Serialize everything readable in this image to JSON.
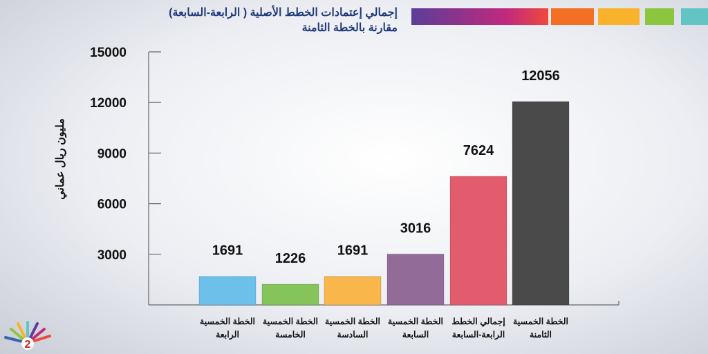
{
  "title_lines": [
    "إجمالي إعتمادات الخطط الأصلية ( الرابعة-السابعة)",
    "مقارنة بالخطة الثامنة"
  ],
  "page_number": "2",
  "colors": {
    "title": "#1f3a7a",
    "strip": [
      "#5a3e98",
      "#c2297d",
      "#ef4a3a",
      "#f36f24",
      "#f9b22b",
      "#8cc63f",
      "#63c5c3"
    ]
  },
  "chart_data": {
    "type": "bar",
    "title": "",
    "xlabel": "",
    "ylabel": "مليون ريال عماني",
    "ylim": [
      0,
      15000
    ],
    "yticks": [
      3000,
      6000,
      9000,
      12000,
      15000
    ],
    "grid": false,
    "categories": [
      [
        "الخطة الخمسية",
        "الرابعة"
      ],
      [
        "الخطة الخمسية",
        "الخامسة"
      ],
      [
        "الخطة الخمسية",
        "السادسة"
      ],
      [
        "الخطة الخمسية",
        "السابعة"
      ],
      [
        "إجمالي الخطط",
        "الرابعة-السابعة"
      ],
      [
        "الخطة الخمسية",
        "الثامنة"
      ]
    ],
    "values": [
      1691,
      1226,
      1691,
      3016,
      7624,
      12056
    ],
    "bar_colors": [
      "#6cc0ea",
      "#84c45a",
      "#f9b64a",
      "#936b99",
      "#e25c6d",
      "#4a4a4a"
    ]
  }
}
